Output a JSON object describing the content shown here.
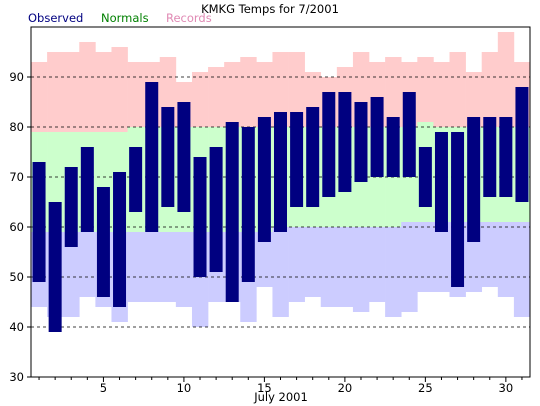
{
  "chart_data": {
    "type": "bar",
    "title": "KMKG Temps for 7/2001",
    "xlabel": "July 2001",
    "ylabel": "",
    "x_ticks": [
      5,
      10,
      15,
      20,
      25,
      30
    ],
    "y_ticks": [
      30,
      40,
      50,
      60,
      70,
      80,
      90
    ],
    "ylim": [
      30,
      100
    ],
    "xlim": [
      0.5,
      31.5
    ],
    "grid": "horizontal dashed lines at 40, 50, 60, 70, 80, 90",
    "legend": [
      {
        "name": "Observed",
        "color": "#000080"
      },
      {
        "name": "Normals",
        "color": "#008000"
      },
      {
        "name": "Records",
        "color": "#E08AB4"
      }
    ],
    "legend_position": "top-left",
    "days": [
      1,
      2,
      3,
      4,
      5,
      6,
      7,
      8,
      9,
      10,
      11,
      12,
      13,
      14,
      15,
      16,
      17,
      18,
      19,
      20,
      21,
      22,
      23,
      24,
      25,
      26,
      27,
      28,
      29,
      30,
      31
    ],
    "series": [
      {
        "name": "Observed",
        "color": "#000080",
        "high": [
          73,
          65,
          72,
          76,
          68,
          71,
          76,
          89,
          84,
          85,
          74,
          76,
          81,
          80,
          82,
          83,
          83,
          84,
          87,
          87,
          85,
          86,
          82,
          87,
          76,
          79,
          79,
          82,
          82,
          82,
          88
        ],
        "low": [
          49,
          39,
          56,
          59,
          46,
          44,
          63,
          59,
          64,
          63,
          50,
          51,
          45,
          49,
          57,
          59,
          64,
          64,
          66,
          67,
          69,
          70,
          70,
          70,
          64,
          59,
          48,
          57,
          66,
          66,
          65
        ]
      },
      {
        "name": "Normals",
        "color": "#CCFFCC",
        "high": [
          79,
          79,
          79,
          79,
          79,
          79,
          80,
          80,
          80,
          80,
          80,
          80,
          80,
          80,
          80,
          80,
          80,
          80,
          80,
          80,
          80,
          80,
          80,
          80,
          81,
          80,
          80,
          80,
          80,
          80,
          80
        ],
        "low": [
          59,
          59,
          59,
          59,
          59,
          59,
          59,
          59,
          59,
          59,
          59,
          59,
          59,
          59,
          59,
          60,
          60,
          60,
          60,
          60,
          60,
          60,
          60,
          61,
          61,
          61,
          61,
          61,
          61,
          61,
          61
        ]
      },
      {
        "name": "Records",
        "color": "#FFCCCC",
        "high": [
          93,
          95,
          95,
          97,
          95,
          96,
          93,
          93,
          94,
          89,
          91,
          92,
          93,
          94,
          93,
          95,
          95,
          91,
          90,
          92,
          95,
          93,
          94,
          93,
          94,
          93,
          95,
          91,
          95,
          99,
          93
        ],
        "low": [
          44,
          42,
          42,
          46,
          44,
          41,
          45,
          45,
          45,
          44,
          40,
          45,
          45,
          41,
          48,
          42,
          45,
          46,
          44,
          44,
          43,
          45,
          42,
          43,
          47,
          47,
          46,
          47,
          48,
          46,
          42
        ]
      }
    ],
    "colors": {
      "observed": "#000080",
      "normals_band": "#CCFFCC",
      "records_high_band": "#FFCCCC",
      "records_low_band": "#CCCCFF",
      "observed_label": "#000080",
      "normals_label": "#008000",
      "records_label": "#E08AB4"
    }
  }
}
